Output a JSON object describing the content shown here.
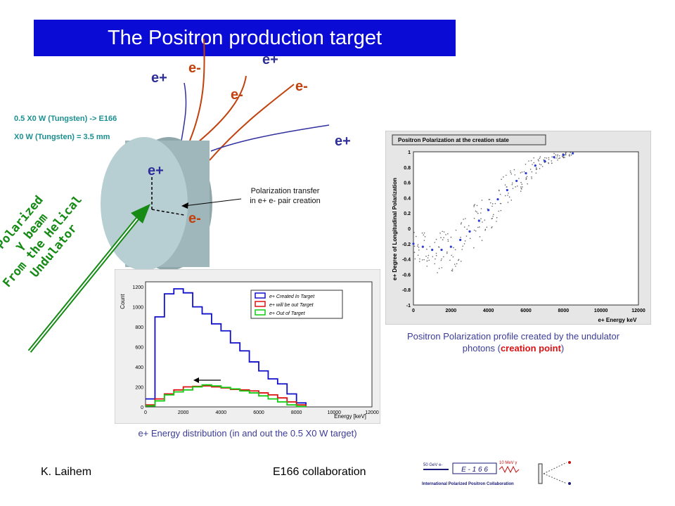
{
  "title": "The Positron production target",
  "particles": {
    "ep1": "e+",
    "em1": "e-",
    "ep2": "e+",
    "em2": "e-",
    "em3": "e-",
    "ep3": "e+",
    "ep_disk": "e+",
    "em_disk": "e-"
  },
  "notes": {
    "line1": "0.5 X0 W (Tungsten)  -> E166",
    "line2": "X0 W (Tungsten)  = 3.5 mm"
  },
  "transfer_label": [
    "Polarization transfer",
    "in e+ e- pair creation"
  ],
  "beam_label": [
    "Polarized",
    "γ beam",
    "From the Helical",
    "Undulator"
  ],
  "energy_chart": {
    "legend": [
      "e+ Created In Target",
      "e+ will be out Target",
      "e+ Out of Target"
    ],
    "colors": [
      "#1010cc",
      "#dd1111",
      "#11cc11"
    ],
    "ylabel": "Count",
    "xlabel": "Energy [keV]",
    "caption": "e+ Energy distribution (in and out the 0.5 X0 W target)"
  },
  "pol_chart": {
    "title": "Positron Polarization at the creation state",
    "ylabel": "e+ Degree of Longitudinal Polarization",
    "xlabel": "e+ Energy keV",
    "caption_pre": "Positron Polarization profile created by the undulator photons (",
    "caption_em": "creation point",
    "caption_post": ")"
  },
  "chart_data": [
    {
      "type": "line",
      "x": [
        0,
        500,
        1000,
        1500,
        2000,
        2500,
        3000,
        3500,
        4000,
        4500,
        5000,
        5500,
        6000,
        6500,
        7000,
        7500,
        8000,
        8500
      ],
      "series": [
        {
          "name": "e+ Created In Target",
          "values": [
            80,
            900,
            1130,
            1180,
            1140,
            1000,
            930,
            830,
            760,
            640,
            560,
            450,
            360,
            280,
            230,
            130,
            40,
            0
          ]
        },
        {
          "name": "e+ will be out Target",
          "values": [
            20,
            80,
            130,
            170,
            200,
            205,
            210,
            200,
            190,
            175,
            170,
            160,
            140,
            120,
            90,
            50,
            20,
            0
          ]
        },
        {
          "name": "e+ Out of Target",
          "values": [
            10,
            60,
            120,
            150,
            170,
            200,
            220,
            210,
            195,
            180,
            160,
            140,
            110,
            80,
            50,
            20,
            5,
            0
          ]
        }
      ],
      "xlabel": "Energy [keV]",
      "ylabel": "Count",
      "xlim": [
        0,
        12000
      ],
      "ylim": [
        0,
        1250
      ],
      "xticks": [
        0,
        2000,
        4000,
        6000,
        8000,
        10000,
        12000
      ],
      "yticks": [
        0,
        200,
        400,
        600,
        800,
        1000,
        1200
      ]
    },
    {
      "type": "scatter",
      "title": "Positron Polarization at the creation state",
      "x": [
        0,
        500,
        1000,
        1500,
        2000,
        2500,
        3000,
        3500,
        4000,
        4500,
        5000,
        5500,
        6000,
        6500,
        7000,
        7500,
        8000,
        8500
      ],
      "series": [
        {
          "name": "mean",
          "values": [
            -0.2,
            -0.24,
            -0.28,
            -0.28,
            -0.24,
            -0.15,
            -0.04,
            0.1,
            0.24,
            0.38,
            0.5,
            0.62,
            0.72,
            0.82,
            0.88,
            0.93,
            0.96,
            0.98
          ]
        },
        {
          "name": "upper",
          "values": [
            0.0,
            -0.05,
            -0.07,
            -0.04,
            0.03,
            0.12,
            0.24,
            0.38,
            0.52,
            0.63,
            0.73,
            0.82,
            0.88,
            0.93,
            0.96,
            0.98,
            0.99,
            1.0
          ]
        },
        {
          "name": "lower",
          "values": [
            -0.4,
            -0.5,
            -0.58,
            -0.6,
            -0.57,
            -0.48,
            -0.36,
            -0.22,
            -0.06,
            0.1,
            0.26,
            0.42,
            0.56,
            0.68,
            0.78,
            0.86,
            0.92,
            0.96
          ]
        }
      ],
      "xlabel": "e+ Energy keV",
      "ylabel": "e+ Degree of Longitudinal Polarization",
      "xlim": [
        0,
        12000
      ],
      "ylim": [
        -1,
        1
      ],
      "xticks": [
        0,
        2000,
        4000,
        6000,
        8000,
        10000,
        12000
      ],
      "yticks": [
        -1,
        -0.8,
        -0.6,
        -0.4,
        -0.2,
        0,
        0.2,
        0.4,
        0.6,
        0.8,
        1
      ]
    }
  ],
  "footer": {
    "author": "K. Laihem",
    "collab": "E166 collaboration",
    "logo_label": "E - 1 6 6",
    "logo_sub": "International Polarized Positron Collaboration",
    "logo_beam": "50 GeV e-",
    "logo_photon": "10 MeV γ"
  },
  "colors": {
    "title_bg": "#0b0bd6",
    "positron": "#2f2f9a",
    "electron": "#c2410c",
    "beam": "#158a15"
  }
}
